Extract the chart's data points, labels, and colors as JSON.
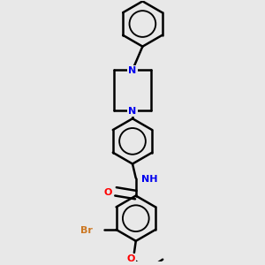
{
  "background_color": "#e8e8e8",
  "bond_color": "#000000",
  "bond_width": 1.8,
  "N_color": "#0000ee",
  "O_color": "#ff0000",
  "Br_color": "#cc7722",
  "font_size": 8,
  "fig_width": 3.0,
  "fig_height": 3.0,
  "dpi": 100,
  "xlim": [
    -1.0,
    1.0
  ],
  "ylim": [
    -1.55,
    1.55
  ]
}
